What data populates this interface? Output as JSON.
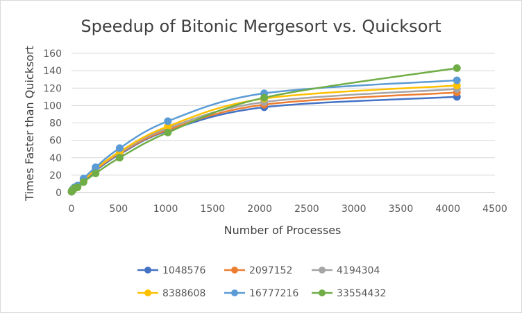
{
  "chart_data": {
    "type": "line",
    "title": "Speedup of Bitonic Mergesort vs. Quicksort",
    "xlabel": "Number of Processes",
    "ylabel": "Times Faster than Quicksort",
    "xlim": [
      0,
      4500
    ],
    "ylim": [
      0,
      160
    ],
    "xticks": [
      0,
      500,
      1000,
      1500,
      2000,
      2500,
      3000,
      3500,
      4000,
      4500
    ],
    "yticks": [
      0,
      20,
      40,
      60,
      80,
      100,
      120,
      140,
      160
    ],
    "grid": "horizontal",
    "legend_position": "bottom",
    "smoothed": true,
    "x": [
      1,
      2,
      4,
      8,
      16,
      32,
      64,
      128,
      256,
      512,
      1024,
      2048,
      4096
    ],
    "series": [
      {
        "name": "1048576",
        "color": "#4472C4",
        "values": [
          1,
          1.5,
          2,
          2.5,
          3,
          5,
          7,
          13,
          25,
          44,
          71,
          98,
          110
        ]
      },
      {
        "name": "2097152",
        "color": "#ED7D31",
        "values": [
          1,
          1.5,
          2,
          2.5,
          3,
          5,
          7,
          13,
          26,
          45,
          72,
          101,
          115
        ]
      },
      {
        "name": "4194304",
        "color": "#A5A5A5",
        "values": [
          1,
          1.5,
          2,
          2.5,
          3,
          5,
          7,
          14,
          27,
          46,
          74,
          104,
          119
        ]
      },
      {
        "name": "8388608",
        "color": "#FFC000",
        "values": [
          1,
          1.5,
          2,
          2.5,
          3,
          5,
          7,
          14,
          27,
          47,
          76,
          108,
          123
        ]
      },
      {
        "name": "16777216",
        "color": "#5B9BD5",
        "values": [
          1,
          1.5,
          2,
          3,
          4,
          6,
          8,
          16,
          29,
          51,
          82,
          114,
          129
        ]
      },
      {
        "name": "33554432",
        "color": "#70AD47",
        "values": [
          1,
          1.5,
          2,
          2.5,
          3,
          5,
          6,
          12,
          22,
          40,
          69,
          109,
          143
        ]
      }
    ]
  }
}
